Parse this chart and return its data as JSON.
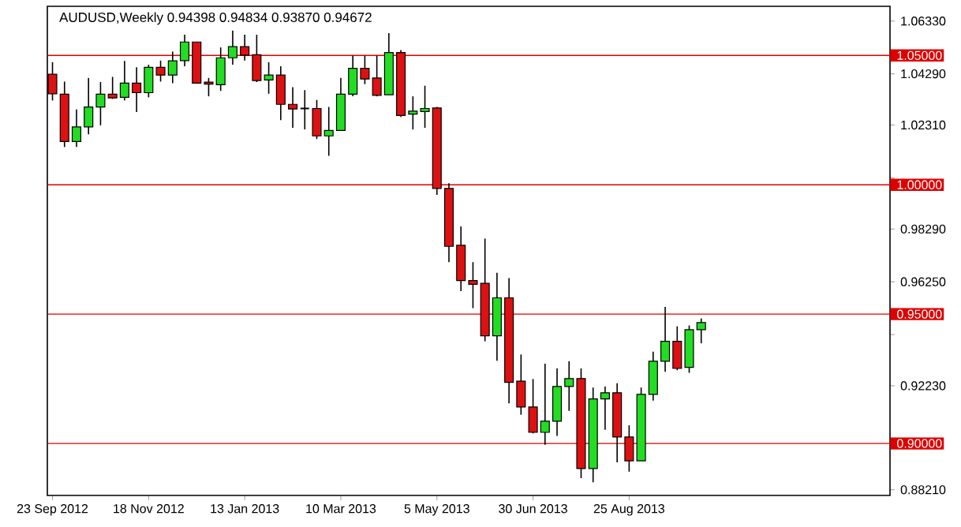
{
  "chart_data": {
    "type": "candlestick",
    "title": "AUDUSD,Weekly  0.94398 0.94834 0.93870 0.94672",
    "x": [
      "2012-09-23",
      "2012-09-30",
      "2012-10-07",
      "2012-10-14",
      "2012-10-21",
      "2012-10-28",
      "2012-11-04",
      "2012-11-11",
      "2012-11-18",
      "2012-11-25",
      "2012-12-02",
      "2012-12-09",
      "2012-12-16",
      "2012-12-23",
      "2012-12-30",
      "2013-01-06",
      "2013-01-13",
      "2013-01-20",
      "2013-01-27",
      "2013-02-03",
      "2013-02-10",
      "2013-02-17",
      "2013-02-24",
      "2013-03-03",
      "2013-03-10",
      "2013-03-17",
      "2013-03-24",
      "2013-03-31",
      "2013-04-07",
      "2013-04-14",
      "2013-04-21",
      "2013-04-28",
      "2013-05-05",
      "2013-05-12",
      "2013-05-19",
      "2013-05-26",
      "2013-06-02",
      "2013-06-09",
      "2013-06-16",
      "2013-06-23",
      "2013-06-30",
      "2013-07-07",
      "2013-07-14",
      "2013-07-21",
      "2013-07-28",
      "2013-08-04",
      "2013-08-11",
      "2013-08-18",
      "2013-08-25",
      "2013-09-01",
      "2013-09-08",
      "2013-09-15",
      "2013-09-22",
      "2013-09-29",
      "2013-10-06"
    ],
    "ohlc": [
      [
        1.0427,
        1.0474,
        1.0326,
        1.0352
      ],
      [
        1.035,
        1.0399,
        1.0146,
        1.0167
      ],
      [
        1.0167,
        1.0291,
        1.0146,
        1.0224
      ],
      [
        1.0224,
        1.0413,
        1.0195,
        1.0301
      ],
      [
        1.0301,
        1.0397,
        1.023,
        1.035
      ],
      [
        1.035,
        1.0417,
        1.0332,
        1.0336
      ],
      [
        1.0338,
        1.0479,
        1.0326,
        1.0393
      ],
      [
        1.0393,
        1.0454,
        1.0281,
        1.0356
      ],
      [
        1.0356,
        1.0464,
        1.0338,
        1.0454
      ],
      [
        1.0454,
        1.048,
        1.0399,
        1.0424
      ],
      [
        1.0424,
        1.0515,
        1.0393,
        1.0479
      ],
      [
        1.048,
        1.058,
        1.0458,
        1.0552
      ],
      [
        1.0552,
        1.0552,
        1.0393,
        1.0393
      ],
      [
        1.0397,
        1.0413,
        1.0342,
        1.0389
      ],
      [
        1.0387,
        1.0531,
        1.0363,
        1.0491
      ],
      [
        1.0491,
        1.0596,
        1.0464,
        1.0534
      ],
      [
        1.0534,
        1.058,
        1.048,
        1.0501
      ],
      [
        1.0503,
        1.058,
        1.0397,
        1.0403
      ],
      [
        1.0405,
        1.0474,
        1.0352,
        1.0424
      ],
      [
        1.0424,
        1.0458,
        1.025,
        1.0311
      ],
      [
        1.0311,
        1.0377,
        1.022,
        1.0293
      ],
      [
        1.0295,
        1.0366,
        1.0214,
        1.0295
      ],
      [
        1.0295,
        1.0328,
        1.0177,
        1.0189
      ],
      [
        1.0189,
        1.0301,
        1.0112,
        1.021
      ],
      [
        1.021,
        1.0413,
        1.021,
        1.035
      ],
      [
        1.035,
        1.0499,
        1.0342,
        1.045
      ],
      [
        1.045,
        1.0499,
        1.0389,
        1.0409
      ],
      [
        1.0413,
        1.0499,
        1.0342,
        1.0346
      ],
      [
        1.0348,
        1.0586,
        1.0348,
        1.0511
      ],
      [
        1.0511,
        1.0521,
        1.0262,
        1.0268
      ],
      [
        1.0273,
        1.0342,
        1.0214,
        1.0285
      ],
      [
        1.0283,
        1.0383,
        1.022,
        1.0295
      ],
      [
        1.0297,
        1.0301,
        0.9961,
        0.9986
      ],
      [
        0.9986,
        1.0006,
        0.9701,
        0.9762
      ],
      [
        0.9766,
        0.9839,
        0.9589,
        0.963
      ],
      [
        0.963,
        0.9701,
        0.9523,
        0.9615
      ],
      [
        0.9619,
        0.9792,
        0.9395,
        0.9416
      ],
      [
        0.9416,
        0.966,
        0.932,
        0.9563
      ],
      [
        0.9563,
        0.9639,
        0.9155,
        0.9236
      ],
      [
        0.9241,
        0.9344,
        0.9111,
        0.9141
      ],
      [
        0.9141,
        0.9249,
        0.9039,
        0.9043
      ],
      [
        0.9043,
        0.9308,
        0.8995,
        0.9086
      ],
      [
        0.9086,
        0.929,
        0.9029,
        0.922
      ],
      [
        0.922,
        0.9318,
        0.9126,
        0.9251
      ],
      [
        0.9251,
        0.929,
        0.8866,
        0.8903
      ],
      [
        0.8903,
        0.9216,
        0.885,
        0.9172
      ],
      [
        0.9172,
        0.922,
        0.9053,
        0.9196
      ],
      [
        0.9196,
        0.9233,
        0.8927,
        0.9025
      ],
      [
        0.9025,
        0.907,
        0.8891,
        0.8933
      ],
      [
        0.8933,
        0.9216,
        0.8933,
        0.919
      ],
      [
        0.919,
        0.9355,
        0.9166,
        0.9318
      ],
      [
        0.9318,
        0.9528,
        0.9277,
        0.9395
      ],
      [
        0.9395,
        0.9453,
        0.9283,
        0.929
      ],
      [
        0.9294,
        0.9456,
        0.9273,
        0.944
      ],
      [
        0.94398,
        0.94834,
        0.9387,
        0.94672
      ]
    ],
    "colors": [
      "#dd1111",
      "#dd1111",
      "#22dd22",
      "#22dd22",
      "#22dd22",
      "#dd1111",
      "#22dd22",
      "#dd1111",
      "#22dd22",
      "#dd1111",
      "#22dd22",
      "#22dd22",
      "#dd1111",
      "#dd1111",
      "#22dd22",
      "#22dd22",
      "#dd1111",
      "#dd1111",
      "#22dd22",
      "#dd1111",
      "#dd1111",
      "#000000",
      "#dd1111",
      "#22dd22",
      "#22dd22",
      "#22dd22",
      "#dd1111",
      "#dd1111",
      "#22dd22",
      "#dd1111",
      "#22dd22",
      "#22dd22",
      "#dd1111",
      "#dd1111",
      "#dd1111",
      "#dd1111",
      "#dd1111",
      "#22dd22",
      "#dd1111",
      "#dd1111",
      "#dd1111",
      "#22dd22",
      "#22dd22",
      "#22dd22",
      "#dd1111",
      "#22dd22",
      "#22dd22",
      "#dd1111",
      "#dd1111",
      "#22dd22",
      "#22dd22",
      "#22dd22",
      "#dd1111",
      "#22dd22",
      "#22dd22"
    ],
    "xlim": [
      "2012-09-20",
      "2014-01-24"
    ],
    "xticks": [
      {
        "value": "2012-09-23",
        "label": "23 Sep 2012"
      },
      {
        "value": "2012-11-18",
        "label": "18 Nov 2012"
      },
      {
        "value": "2013-01-13",
        "label": "13 Jan 2013"
      },
      {
        "value": "2013-03-10",
        "label": "10 Mar 2013"
      },
      {
        "value": "2013-05-05",
        "label": "5 May 2013"
      },
      {
        "value": "2013-06-30",
        "label": "30 Jun 2013"
      },
      {
        "value": "2013-08-25",
        "label": "25 Aug 2013"
      }
    ],
    "ylim": [
      0.8799,
      1.069
    ],
    "yticks": [
      {
        "value": 1.0633,
        "label": "1.06330"
      },
      {
        "value": 1.0429,
        "label": "1.04290"
      },
      {
        "value": 1.0231,
        "label": "1.02310"
      },
      {
        "value": 1.0027,
        "label": null
      },
      {
        "value": 0.9829,
        "label": "0.98290"
      },
      {
        "value": 0.9625,
        "label": "0.96250"
      },
      {
        "value": 0.9421,
        "label": null
      },
      {
        "value": 0.9223,
        "label": "0.92230"
      },
      {
        "value": 0.9019,
        "label": null
      },
      {
        "value": 0.8821,
        "label": "0.88210"
      }
    ],
    "ref_lines": [
      {
        "axis": "y",
        "value": 1.05,
        "label": "1.05000",
        "color": "#dd0000"
      },
      {
        "axis": "y",
        "value": 1.0,
        "label": "1.00000",
        "color": "#dd0000"
      },
      {
        "axis": "y",
        "value": 0.95,
        "label": "0.95000",
        "color": "#dd0000"
      },
      {
        "axis": "y",
        "value": 0.9,
        "label": "0.90000",
        "color": "#dd0000"
      }
    ]
  }
}
